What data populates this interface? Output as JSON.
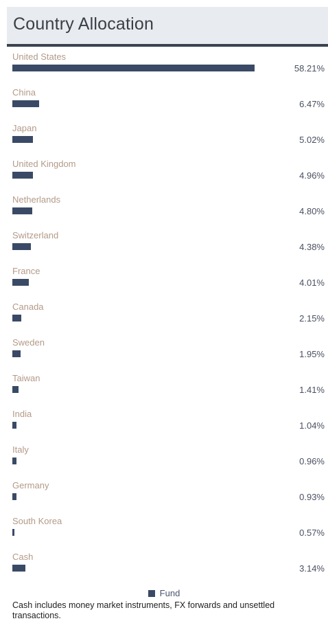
{
  "header": {
    "title": "Country Allocation"
  },
  "chart_data": {
    "type": "bar",
    "orientation": "horizontal",
    "categories": [
      "United States",
      "China",
      "Japan",
      "United Kingdom",
      "Netherlands",
      "Switzerland",
      "France",
      "Canada",
      "Sweden",
      "Taiwan",
      "India",
      "Italy",
      "Germany",
      "South Korea",
      "Cash"
    ],
    "series": [
      {
        "name": "Fund",
        "values": [
          58.21,
          6.47,
          5.02,
          4.96,
          4.8,
          4.38,
          4.01,
          2.15,
          1.95,
          1.41,
          1.04,
          0.96,
          0.93,
          0.57,
          3.14
        ],
        "value_labels": [
          "58.21%",
          "6.47%",
          "5.02%",
          "4.96%",
          "4.80%",
          "4.38%",
          "4.01%",
          "2.15%",
          "1.95%",
          "1.41%",
          "1.04%",
          "0.96%",
          "0.93%",
          "0.57%",
          "3.14%"
        ]
      }
    ],
    "title": "Country Allocation",
    "xlabel": "",
    "ylabel": "",
    "xlim": [
      0,
      58.21
    ],
    "legend": "bottom-center",
    "grid": false,
    "color": "#3a4a66"
  },
  "legend": {
    "label": "Fund"
  },
  "footnote": "Cash includes money market instruments, FX forwards and unsettled transactions."
}
